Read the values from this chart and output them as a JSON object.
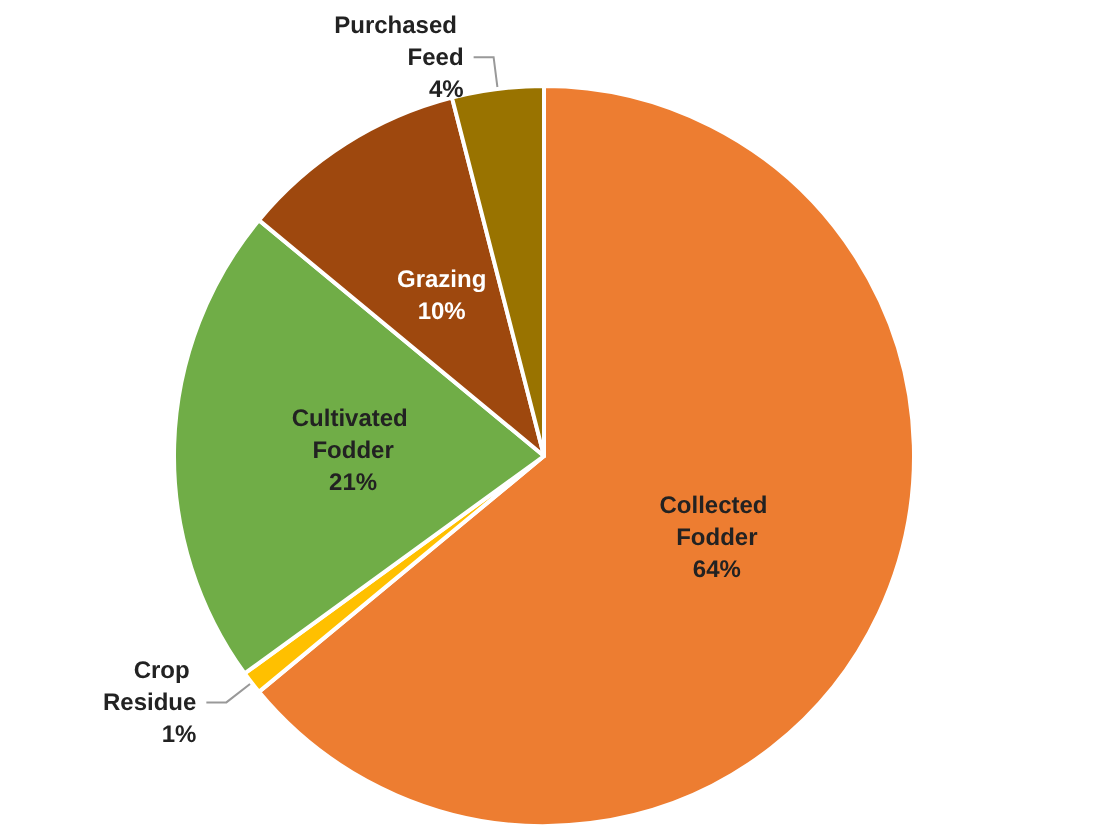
{
  "chart_data": {
    "type": "pie",
    "categories": [
      "Collected Fodder",
      "Crop Residue",
      "Cultivated Fodder",
      "Grazing",
      "Purchased Feed"
    ],
    "values": [
      64,
      1,
      21,
      10,
      4
    ],
    "colors": [
      "#ed7d31",
      "#ffc000",
      "#70ad47",
      "#9e480e",
      "#997300"
    ],
    "value_labels": [
      "64%",
      "1%",
      "21%",
      "10%",
      "4%"
    ],
    "legend": false
  }
}
